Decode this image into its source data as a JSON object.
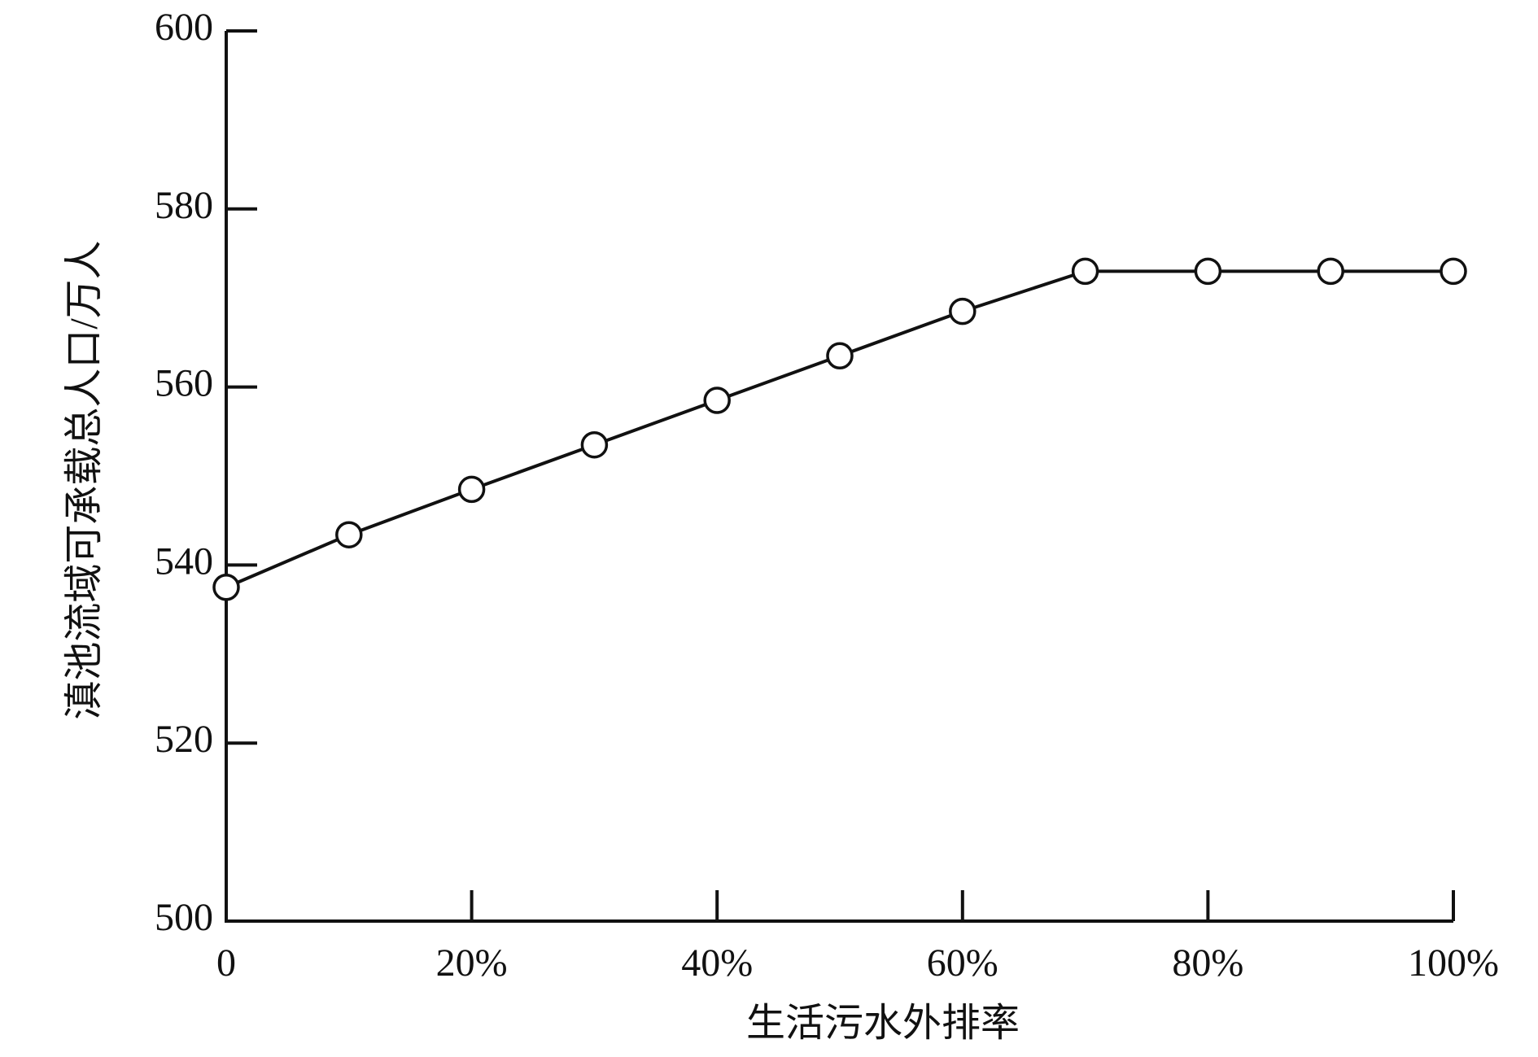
{
  "chart_data": {
    "type": "line",
    "x_label": "生活污水外排率",
    "y_label": "滇池流域可承载总人口/万人",
    "x": [
      0,
      10,
      20,
      30,
      40,
      50,
      60,
      70,
      80,
      90,
      100
    ],
    "series": [
      {
        "color": "#111111",
        "values": [
          537.5,
          543.4,
          548.5,
          553.5,
          558.5,
          563.5,
          568.5,
          573,
          573,
          573,
          573
        ]
      }
    ],
    "xlim": [
      0,
      100
    ],
    "xticks": [
      0,
      {
        "value": 20,
        "label": "20%"
      },
      {
        "value": 40,
        "label": "40%"
      },
      {
        "value": 60,
        "label": "60%"
      },
      {
        "value": 80,
        "label": "80%"
      },
      {
        "value": 100,
        "label": "100%"
      }
    ],
    "ylim": [
      500,
      600
    ],
    "yticks": [
      500,
      520,
      540,
      560,
      580,
      600
    ],
    "grid": false
  }
}
